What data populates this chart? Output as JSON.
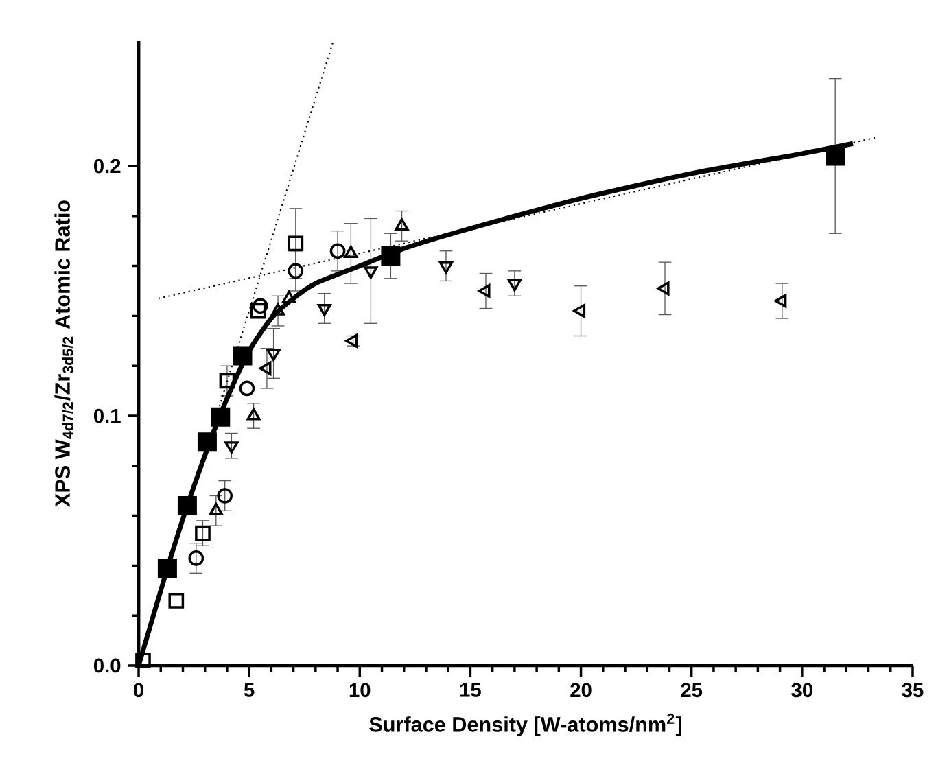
{
  "chart_data": {
    "type": "scatter",
    "xlabel": "Surface Density [W-atoms/nm$^{2}$]",
    "ylabel": "XPS W$_{4d7/2}$/Zr$_{3d5/2}$ Atomic Ratio",
    "xlim": [
      0,
      35
    ],
    "ylim": [
      0,
      0.25
    ],
    "xticks": [
      0,
      5,
      10,
      15,
      20,
      25,
      30,
      35
    ],
    "yticks": [
      {
        "value": 0,
        "label": "0.0"
      },
      {
        "value": 0.1,
        "label": "0.1"
      },
      {
        "value": 0.2,
        "label": "0.2"
      }
    ],
    "grid": false,
    "series": [
      {
        "color": "#000000",
        "marker": "square-filled",
        "x": [
          1.3,
          2.2,
          3.1,
          3.7,
          4.7,
          11.4,
          31.5
        ],
        "values": [
          0.039,
          0.064,
          0.0895,
          0.0995,
          0.124,
          0.164,
          0.204
        ],
        "errors": [
          null,
          null,
          null,
          null,
          null,
          0.009,
          0.031
        ]
      },
      {
        "color": "#000000",
        "marker": "square",
        "x": [
          0.2,
          1.7,
          2.9,
          4.0,
          5.4,
          7.1
        ],
        "values": [
          0.002,
          0.026,
          0.053,
          0.114,
          0.142,
          0.169
        ],
        "errors": [
          null,
          null,
          0.005,
          0.006,
          null,
          0.014
        ]
      },
      {
        "color": "#000000",
        "marker": "circle",
        "x": [
          2.6,
          3.9,
          4.9,
          5.5,
          7.1,
          9.0
        ],
        "values": [
          0.043,
          0.068,
          0.111,
          0.144,
          0.158,
          0.166
        ],
        "errors": [
          0.006,
          0.006,
          null,
          null,
          0.008,
          0.008
        ]
      },
      {
        "color": "#000000",
        "marker": "triangle",
        "x": [
          3.5,
          5.2,
          6.3,
          6.8,
          9.6,
          11.9
        ],
        "values": [
          0.062,
          0.1,
          0.142,
          0.147,
          0.165,
          0.176
        ],
        "errors": [
          0.006,
          0.005,
          0.006,
          null,
          0.012,
          0.006
        ]
      },
      {
        "color": "#000000",
        "marker": "triangle-down",
        "x": [
          4.2,
          6.1,
          8.4,
          10.5,
          13.9,
          17.0
        ],
        "values": [
          0.088,
          0.125,
          0.143,
          0.158,
          0.16,
          0.153
        ],
        "errors": [
          0.005,
          0.01,
          0.006,
          0.021,
          0.006,
          0.005
        ]
      },
      {
        "color": "#000000",
        "marker": "triangle-left",
        "x": [
          5.8,
          9.7,
          15.7,
          20.0,
          23.8,
          29.1
        ],
        "values": [
          0.119,
          0.13,
          0.15,
          0.142,
          0.151,
          0.146
        ],
        "errors": [
          0.008,
          0.002,
          0.007,
          0.01,
          0.0105,
          0.007
        ]
      },
      {
        "type": "line",
        "color": "#000000",
        "line_style": "solid",
        "x": [
          0,
          1.3,
          2.2,
          3.2,
          4,
          5,
          6,
          7,
          8,
          10,
          12,
          15,
          20,
          25,
          30,
          32.3
        ],
        "values": [
          0,
          0.039,
          0.064,
          0.089,
          0.107,
          0.126,
          0.139,
          0.147,
          0.153,
          0.16,
          0.167,
          0.175,
          0.187,
          0.197,
          0.205,
          0.209
        ]
      },
      {
        "type": "line",
        "color": "#000000",
        "line_style": "dotted",
        "x": [
          0,
          8.8
        ],
        "values": [
          0,
          0.25
        ]
      },
      {
        "type": "line",
        "color": "#000000",
        "line_style": "dotted",
        "x": [
          0.9,
          33.4
        ],
        "values": [
          0.147,
          0.2115
        ]
      }
    ]
  }
}
